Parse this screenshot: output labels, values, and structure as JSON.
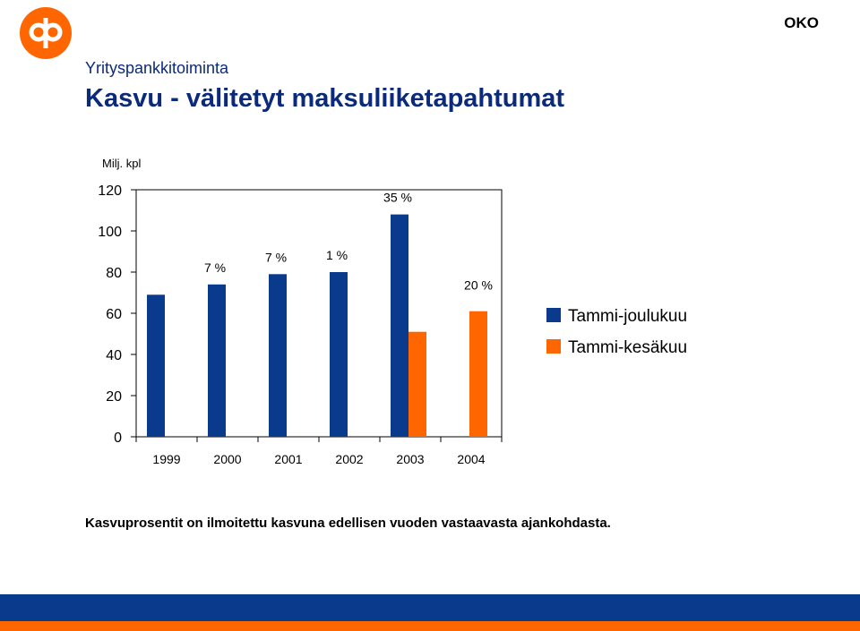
{
  "header": {
    "section": "Yrityspankkitoiminta",
    "title": "Kasvu - välitetyt maksuliiketapahtumat",
    "brand": "OKO"
  },
  "logo": {
    "icon": "op-logo-icon",
    "color": "#ff6600"
  },
  "footnote": "Kasvuprosentit on ilmoitettu kasvuna edellisen vuoden vastaavasta ajankohdasta.",
  "colors": {
    "primary": "#0a3a8c",
    "accent": "#ff6600"
  },
  "chart_data": {
    "type": "bar",
    "unit_label": "Milj. kpl",
    "categories": [
      "1999",
      "2000",
      "2001",
      "2002",
      "2003",
      "2004"
    ],
    "ylim": [
      0,
      120
    ],
    "yticks": [
      0,
      20,
      40,
      60,
      80,
      100,
      120
    ],
    "legend_position": "right",
    "series": [
      {
        "name": "Tammi-joulukuu",
        "color": "#0a3a8c",
        "values": [
          69,
          74,
          79,
          80,
          108,
          null
        ]
      },
      {
        "name": "Tammi-kesäkuu",
        "color": "#ff6600",
        "values": [
          null,
          null,
          null,
          null,
          51,
          61
        ]
      }
    ],
    "annotations": [
      {
        "category": "2000",
        "series": 0,
        "text": "7 %"
      },
      {
        "category": "2001",
        "series": 0,
        "text": "7 %"
      },
      {
        "category": "2002",
        "series": 0,
        "text": "1 %"
      },
      {
        "category": "2003",
        "series": 0,
        "text": "35 %"
      },
      {
        "category": "2004",
        "series": 1,
        "text": "20 %"
      }
    ]
  }
}
